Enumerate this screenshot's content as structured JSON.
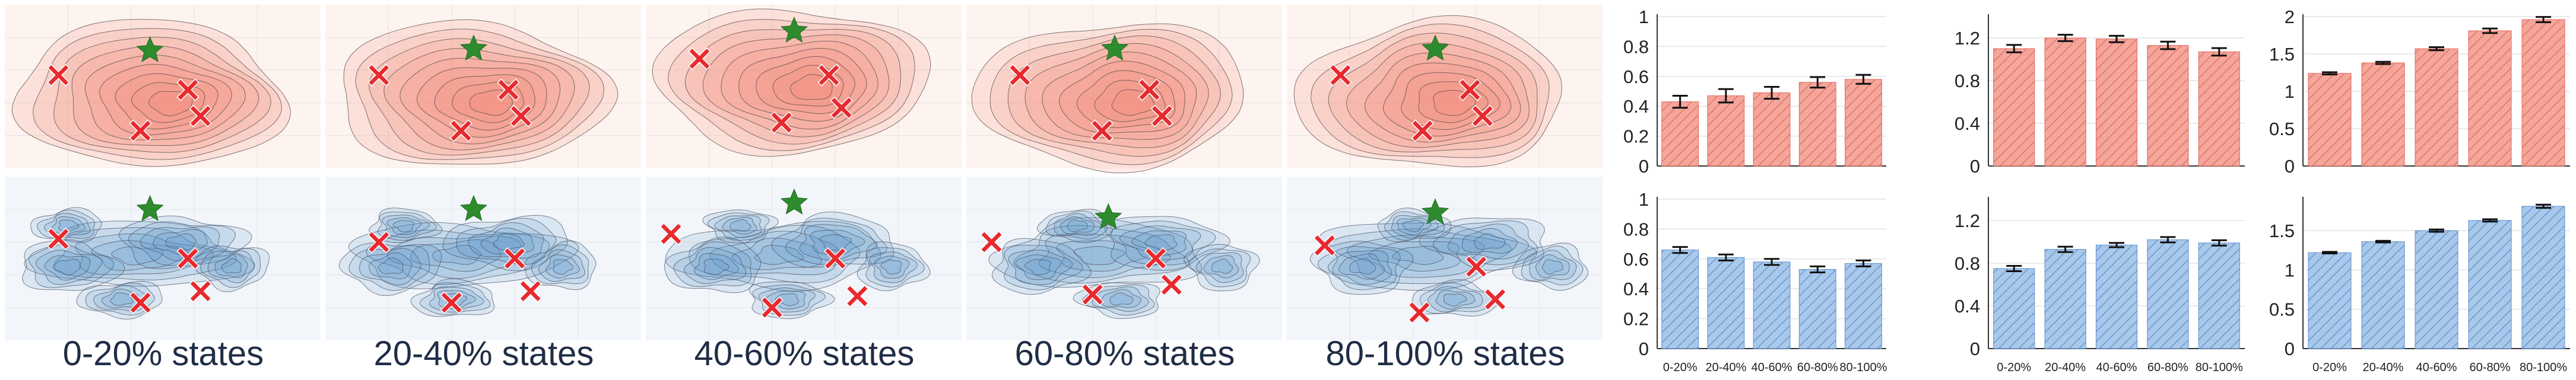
{
  "density_grid": {
    "columns": [
      "0-20% states",
      "20-40% states",
      "40-60% states",
      "60-80% states",
      "80-100% states"
    ],
    "rows": [
      {
        "name": "top-row",
        "fill_color": "#f4826e",
        "bg_color": "#fdf3ef",
        "line_color": "#5a4a48"
      },
      {
        "name": "bottom-row",
        "fill_color": "#4f8ec8",
        "bg_color": "#f2f6fb",
        "line_color": "#4a5060"
      }
    ],
    "goal_marker": {
      "icon": "star-icon",
      "color": "#2e8b2e"
    },
    "hazard_marker": {
      "icon": "cross-icon",
      "color": "#e8292e"
    }
  },
  "chart_data": [
    {
      "type": "bar",
      "name": "top-left",
      "categories": [
        "0-20%",
        "20-40%",
        "40-60%",
        "60-80%",
        "80-100%"
      ],
      "values": [
        0.43,
        0.47,
        0.49,
        0.56,
        0.58
      ],
      "errors": [
        0.04,
        0.045,
        0.04,
        0.035,
        0.03
      ],
      "ylim": [
        0,
        1
      ],
      "yticks": [
        0,
        0.2,
        0.4,
        0.6,
        0.8,
        1
      ],
      "ytick_labels": [
        "0",
        "0.2",
        "0.4",
        "0.6",
        "0.8",
        "1"
      ],
      "color": "#f4a69b",
      "hatch": "#e0675a",
      "show_xticks": false
    },
    {
      "type": "bar",
      "name": "top-middle",
      "categories": [
        "0-20%",
        "20-40%",
        "40-60%",
        "60-80%",
        "80-100%"
      ],
      "values": [
        1.1,
        1.2,
        1.19,
        1.13,
        1.07
      ],
      "errors": [
        0.035,
        0.03,
        0.03,
        0.035,
        0.035
      ],
      "ylim": [
        0,
        1.4
      ],
      "yticks": [
        0,
        0.4,
        0.8,
        1.2
      ],
      "ytick_labels": [
        "0",
        "0.4",
        "0.8",
        "1.2"
      ],
      "color": "#f4a69b",
      "hatch": "#e0675a",
      "show_xticks": false
    },
    {
      "type": "bar",
      "name": "top-right",
      "categories": [
        "0-20%",
        "20-40%",
        "40-60%",
        "60-80%",
        "80-100%"
      ],
      "values": [
        1.24,
        1.38,
        1.57,
        1.81,
        1.96
      ],
      "errors": [
        0.015,
        0.015,
        0.02,
        0.03,
        0.035
      ],
      "ylim": [
        0,
        2
      ],
      "yticks": [
        0,
        0.5,
        1,
        1.5,
        2
      ],
      "ytick_labels": [
        "0",
        "0.5",
        "1",
        "1.5",
        "2"
      ],
      "color": "#f4a69b",
      "hatch": "#e0675a",
      "show_xticks": false
    },
    {
      "type": "bar",
      "name": "bottom-left",
      "categories": [
        "0-20%",
        "20-40%",
        "40-60%",
        "60-80%",
        "80-100%"
      ],
      "values": [
        0.66,
        0.61,
        0.58,
        0.53,
        0.57
      ],
      "errors": [
        0.02,
        0.02,
        0.02,
        0.02,
        0.02
      ],
      "ylim": [
        0,
        1
      ],
      "yticks": [
        0,
        0.2,
        0.4,
        0.6,
        0.8,
        1
      ],
      "ytick_labels": [
        "0",
        "0.2",
        "0.4",
        "0.6",
        "0.8",
        "1"
      ],
      "color": "#a9c8ea",
      "hatch": "#5b8fcc",
      "show_xticks": true
    },
    {
      "type": "bar",
      "name": "bottom-middle",
      "categories": [
        "0-20%",
        "20-40%",
        "40-60%",
        "60-80%",
        "80-100%"
      ],
      "values": [
        0.75,
        0.93,
        0.97,
        1.02,
        0.99
      ],
      "errors": [
        0.025,
        0.025,
        0.02,
        0.025,
        0.025
      ],
      "ylim": [
        0,
        1.4
      ],
      "yticks": [
        0,
        0.4,
        0.8,
        1.2
      ],
      "ytick_labels": [
        "0",
        "0.4",
        "0.8",
        "1.2"
      ],
      "color": "#a9c8ea",
      "hatch": "#5b8fcc",
      "show_xticks": true
    },
    {
      "type": "bar",
      "name": "bottom-right",
      "categories": [
        "0-20%",
        "20-40%",
        "40-60%",
        "60-80%",
        "80-100%"
      ],
      "values": [
        1.22,
        1.36,
        1.5,
        1.63,
        1.81
      ],
      "errors": [
        0.01,
        0.01,
        0.015,
        0.015,
        0.02
      ],
      "ylim": [
        0,
        1.9
      ],
      "yticks": [
        0,
        0.5,
        1,
        1.5
      ],
      "ytick_labels": [
        "0",
        "0.5",
        "1",
        "1.5"
      ],
      "color": "#a9c8ea",
      "hatch": "#5b8fcc",
      "show_xticks": true
    }
  ]
}
